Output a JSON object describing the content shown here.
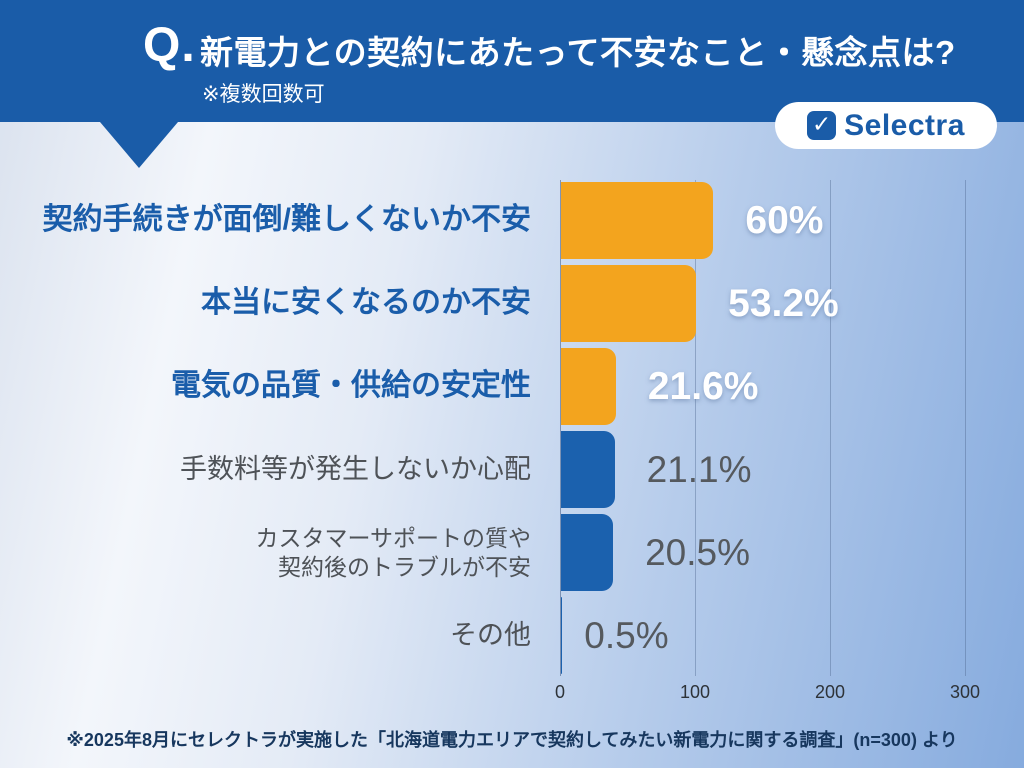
{
  "header": {
    "q_label": "Q.",
    "title": "新電力との契約にあたって不安なこと・懸念点は?",
    "note": "※複数回数可"
  },
  "logo": {
    "text": "Selectra",
    "icon": "check-square-icon"
  },
  "chart_data": {
    "type": "bar",
    "orientation": "horizontal",
    "title": "新電力との契約にあたって不安なこと・懸念点は?",
    "categories": [
      "契約手続きが面倒/難しくないか不安",
      "本当に安くなるのか不安",
      "電気の品質・供給の安定性",
      "手数料等が発生しないか心配",
      "カスタマーサポートの質や\n契約後のトラブルが不安",
      "その他"
    ],
    "values": [
      60,
      53.2,
      21.6,
      21.1,
      20.5,
      0.5
    ],
    "value_labels": [
      "60%",
      "53.2%",
      "21.6%",
      "21.1%",
      "20.5%",
      "0.5%"
    ],
    "emphasized": [
      true,
      true,
      true,
      false,
      false,
      false
    ],
    "x_ticks": [
      "0",
      "100",
      "200",
      "300"
    ],
    "xlim": [
      0,
      300
    ],
    "grid": "vertical",
    "legend": "none",
    "colors": {
      "bar_highlight": "#F3A41E",
      "bar_normal": "#1B61AE",
      "label_highlight": "#1A5DAA",
      "label_normal": "#4E5257",
      "value_highlight": "#FFFFFF",
      "value_normal": "#55595E",
      "header_bg": "#1A5CA8"
    }
  },
  "footer": {
    "source_note": "※2025年8月にセレクトラが実施した「北海道電力エリアで契約してみたい新電力に関する調査」(n=300) より"
  }
}
